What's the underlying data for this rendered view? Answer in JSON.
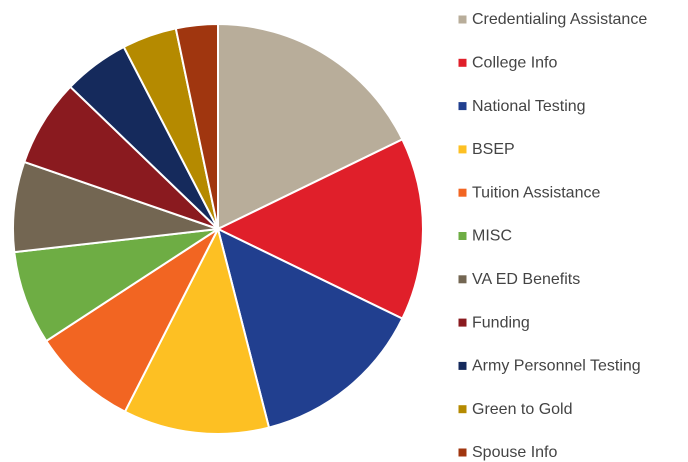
{
  "chart_data": {
    "type": "pie",
    "categories": [
      "Credentialing Assistance",
      "College Info",
      "National Testing",
      "BSEP",
      "Tuition Assistance",
      "MISC",
      "VA ED Benefits",
      "Funding",
      "Army Personnel Testing",
      "Green to Gold",
      "Spouse Info"
    ],
    "values": [
      17.8,
      14.4,
      13.8,
      11.5,
      8.3,
      7.4,
      7.1,
      6.9,
      5.2,
      4.3,
      3.3
    ],
    "colors": [
      "#b8ad9a",
      "#e01f2a",
      "#213f8f",
      "#fdc023",
      "#f26522",
      "#6ead44",
      "#736652",
      "#8a1a1f",
      "#152a5c",
      "#b58a00",
      "#a0360f"
    ],
    "legend": "right"
  }
}
